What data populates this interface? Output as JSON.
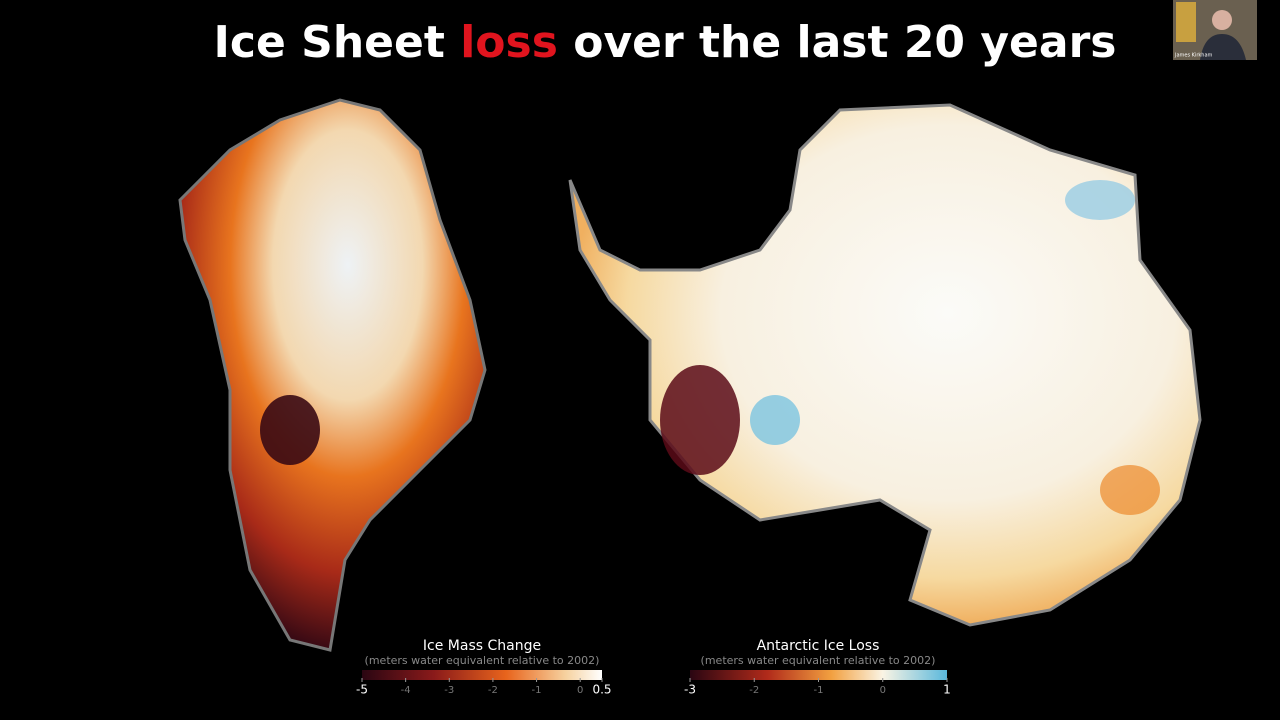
{
  "slide": {
    "title": {
      "part1": "Ice Sheet",
      "highlight": "loss",
      "part2": "over the last 20 years"
    },
    "presenter": "James Kirkham",
    "legends": [
      {
        "title": "Ice Mass Change",
        "subtitle": "(meters water equivalent relative to 2002)",
        "ticks": [
          -5,
          -4,
          -3,
          -2,
          -1,
          0,
          0.5
        ]
      },
      {
        "title": "Antarctic Ice Loss",
        "subtitle": "(meters water equivalent relative to 2002)",
        "ticks": [
          -3,
          -2,
          -1,
          0,
          1
        ]
      }
    ]
  }
}
